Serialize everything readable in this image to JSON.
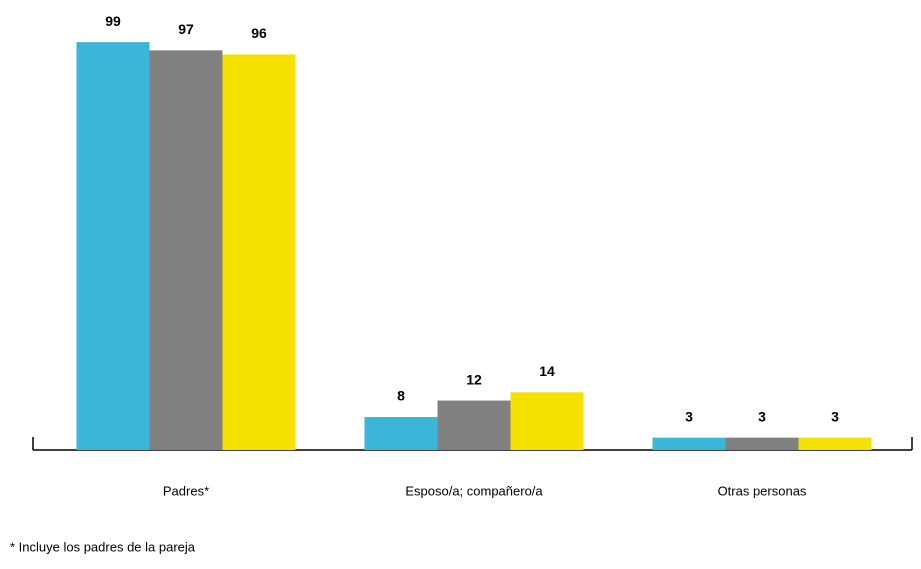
{
  "chart_data": {
    "type": "bar",
    "categories": [
      "Padres*",
      "Esposo/a; compañero/a",
      "Otras personas"
    ],
    "series": [
      {
        "color": "#3cb6d6",
        "values": [
          99,
          8,
          3
        ]
      },
      {
        "color": "#808080",
        "values": [
          97,
          12,
          3
        ]
      },
      {
        "color": "#f4e100",
        "values": [
          96,
          14,
          3
        ]
      }
    ],
    "ylim": [
      0,
      100
    ],
    "note": "* Incluye los padres de la pareja"
  }
}
